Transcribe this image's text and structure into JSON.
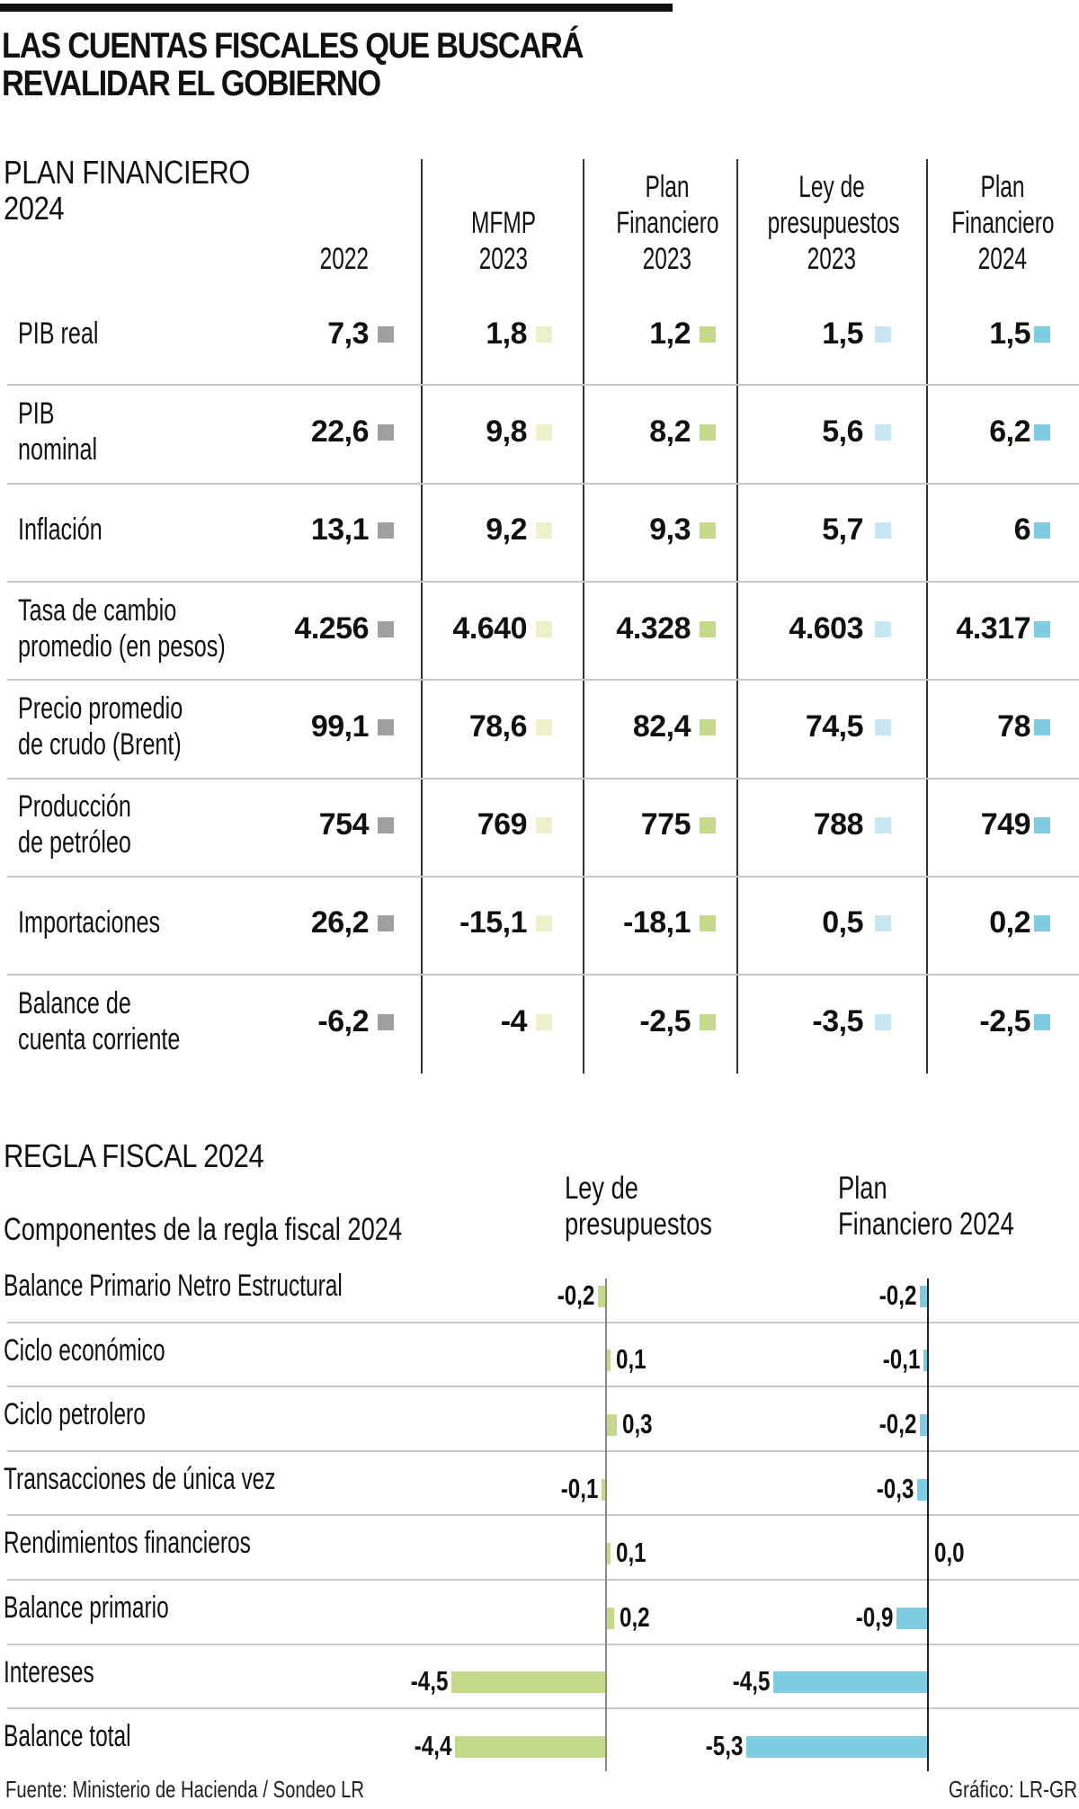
{
  "title": {
    "line1": "LAS CUENTAS FISCALES QUE BUSCARÁ",
    "line2": "REVALIDAR EL GOBIERNO"
  },
  "plan": {
    "section_line1": "PLAN FINANCIERO",
    "section_line2": "2024",
    "columns": [
      {
        "lines": [
          "",
          "",
          "2022"
        ],
        "color": "#a0a0a0"
      },
      {
        "lines": [
          "",
          "MFMP",
          "2023"
        ],
        "color": "#eef0cc"
      },
      {
        "lines": [
          "Plan",
          "Financiero",
          "2023"
        ],
        "color": "#c5d98a"
      },
      {
        "lines": [
          "Ley de",
          "presupuestos",
          "2023"
        ],
        "color": "#c7e6f1"
      },
      {
        "lines": [
          "Plan",
          "Financiero",
          "2024"
        ],
        "color": "#7ecbe2"
      }
    ],
    "rows": [
      {
        "label": [
          "PIB real"
        ],
        "values": [
          "7,3",
          "1,8",
          "1,2",
          "1,5",
          "1,5"
        ]
      },
      {
        "label": [
          "PIB",
          "nominal"
        ],
        "values": [
          "22,6",
          "9,8",
          "8,2",
          "5,6",
          "6,2"
        ]
      },
      {
        "label": [
          "Inflación"
        ],
        "values": [
          "13,1",
          "9,2",
          "9,3",
          "5,7",
          "6"
        ]
      },
      {
        "label": [
          "Tasa de cambio",
          "promedio (en pesos)"
        ],
        "values": [
          "4.256",
          "4.640",
          "4.328",
          "4.603",
          "4.317"
        ]
      },
      {
        "label": [
          "Precio promedio",
          "de crudo (Brent)"
        ],
        "values": [
          "99,1",
          "78,6",
          "82,4",
          "74,5",
          "78"
        ]
      },
      {
        "label": [
          "Producción",
          "de petróleo"
        ],
        "values": [
          "754",
          "769",
          "775",
          "788",
          "749"
        ]
      },
      {
        "label": [
          "Importaciones"
        ],
        "values": [
          "26,2",
          "-15,1",
          "-18,1",
          "0,5",
          "0,2"
        ]
      },
      {
        "label": [
          "Balance de",
          "cuenta corriente"
        ],
        "values": [
          "-6,2",
          "-4",
          "-2,5",
          "-3,5",
          "-2,5"
        ]
      }
    ]
  },
  "regla": {
    "section_title": "REGLA FISCAL 2024",
    "subtitle": "Componentes de la regla fiscal 2024",
    "series_headers": [
      {
        "line1": "Ley de",
        "line2": "presupuestos"
      },
      {
        "line1": "Plan",
        "line2": "Financiero 2024"
      }
    ]
  },
  "chart_data": {
    "type": "bar",
    "orientation": "horizontal",
    "title": "REGLA FISCAL 2024",
    "subtitle": "Componentes de la regla fiscal 2024",
    "categories": [
      "Balance Primario Netro Estructural",
      "Ciclo económico",
      "Ciclo petrolero",
      "Transacciones de única vez",
      "Rendimientos financieros",
      "Balance primario",
      "Intereses",
      "Balance total"
    ],
    "series": [
      {
        "name": "Ley de presupuestos",
        "color": "#c5d98a",
        "values": [
          -0.2,
          0.1,
          0.3,
          -0.1,
          0.1,
          0.2,
          -4.5,
          -4.4
        ],
        "labels": [
          "-0,2",
          "0,1",
          "0,3",
          "-0,1",
          "0,1",
          "0,2",
          "-4,5",
          "-4,4"
        ]
      },
      {
        "name": "Plan Financiero 2024",
        "color": "#7ecbe2",
        "values": [
          -0.2,
          -0.1,
          -0.2,
          -0.3,
          0.0,
          -0.9,
          -4.5,
          -5.3
        ],
        "labels": [
          "-0,2",
          "-0,1",
          "-0,2",
          "-0,3",
          "0,0",
          "-0,9",
          "-4,5",
          "-5,3"
        ]
      }
    ],
    "xlabel": "",
    "ylabel": "",
    "grid": false,
    "legend": "column headers (top)"
  },
  "footer": {
    "source": "Fuente: Ministerio de Hacienda / Sondeo LR",
    "credit": "Gráfico: LR-GR"
  }
}
